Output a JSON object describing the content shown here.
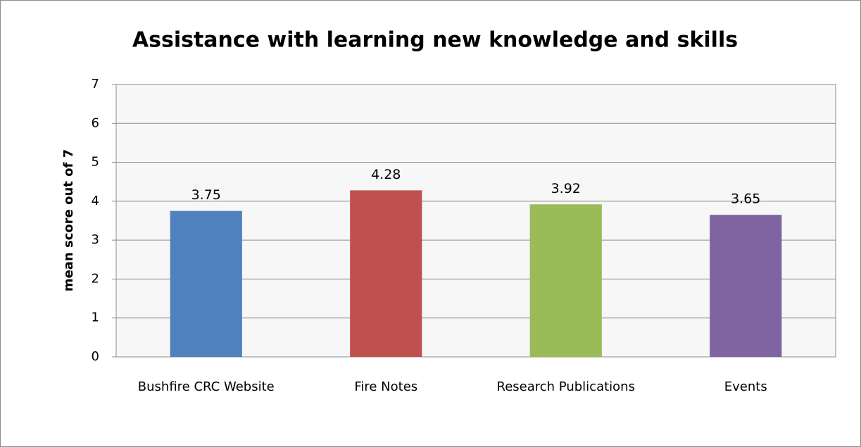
{
  "chart_data": {
    "type": "bar",
    "title": "Assistance with learning new knowledge and skills",
    "y_label": "mean score out of 7",
    "categories": [
      "Bushfire CRC Website",
      "Fire Notes",
      "Research Publications",
      "Events"
    ],
    "values": [
      3.75,
      4.28,
      3.92,
      3.65
    ],
    "colors": [
      "#4f81bd",
      "#c0504d",
      "#9bbb59",
      "#8064a2"
    ],
    "ylim": [
      0,
      7
    ],
    "yticks": [
      0,
      1,
      2,
      3,
      4,
      5,
      6,
      7
    ],
    "grid": true
  }
}
